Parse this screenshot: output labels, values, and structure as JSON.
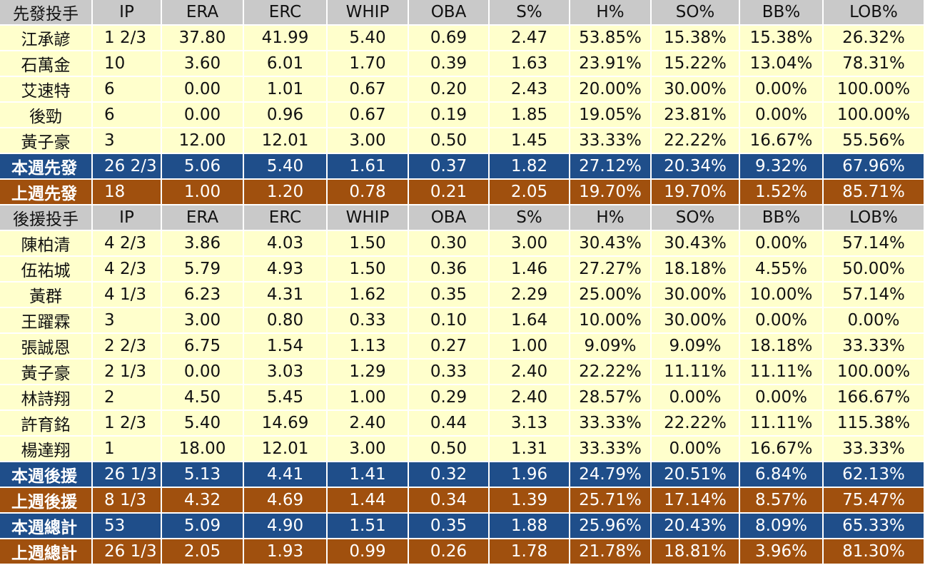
{
  "columns": [
    "IP",
    "ERA",
    "ERC",
    "WHIP",
    "OBA",
    "S%",
    "H%",
    "SO%",
    "BB%",
    "LOB%"
  ],
  "starters": {
    "header_label": "先發投手",
    "rows": [
      {
        "name": "江承諺",
        "cells": [
          "1 2/3",
          "37.80",
          "41.99",
          "5.40",
          "0.69",
          "2.47",
          "53.85%",
          "15.38%",
          "15.38%",
          "26.32%"
        ]
      },
      {
        "name": "石萬金",
        "cells": [
          "10",
          "3.60",
          "6.01",
          "1.70",
          "0.39",
          "1.63",
          "23.91%",
          "15.22%",
          "13.04%",
          "78.31%"
        ]
      },
      {
        "name": "艾速特",
        "cells": [
          "6",
          "0.00",
          "1.01",
          "0.67",
          "0.20",
          "2.43",
          "20.00%",
          "30.00%",
          "0.00%",
          "100.00%"
        ]
      },
      {
        "name": "後勁",
        "cells": [
          "6",
          "0.00",
          "0.96",
          "0.67",
          "0.19",
          "1.85",
          "19.05%",
          "23.81%",
          "0.00%",
          "100.00%"
        ]
      },
      {
        "name": "黃子豪",
        "cells": [
          "3",
          "12.00",
          "12.01",
          "3.00",
          "0.50",
          "1.45",
          "33.33%",
          "22.22%",
          "16.67%",
          "55.56%"
        ]
      }
    ],
    "this_week": {
      "name": "本週先發",
      "cells": [
        "26 2/3",
        "5.06",
        "5.40",
        "1.61",
        "0.37",
        "1.82",
        "27.12%",
        "20.34%",
        "9.32%",
        "67.96%"
      ]
    },
    "last_week": {
      "name": "上週先發",
      "cells": [
        "18",
        "1.00",
        "1.20",
        "0.78",
        "0.21",
        "2.05",
        "19.70%",
        "19.70%",
        "1.52%",
        "85.71%"
      ]
    }
  },
  "relievers": {
    "header_label": "後援投手",
    "rows": [
      {
        "name": "陳柏清",
        "cells": [
          "4 2/3",
          "3.86",
          "4.03",
          "1.50",
          "0.30",
          "3.00",
          "30.43%",
          "30.43%",
          "0.00%",
          "57.14%"
        ]
      },
      {
        "name": "伍祐城",
        "cells": [
          "4 2/3",
          "5.79",
          "4.93",
          "1.50",
          "0.36",
          "1.46",
          "27.27%",
          "18.18%",
          "4.55%",
          "50.00%"
        ]
      },
      {
        "name": "黃群",
        "cells": [
          "4 1/3",
          "6.23",
          "4.31",
          "1.62",
          "0.35",
          "2.29",
          "25.00%",
          "30.00%",
          "10.00%",
          "57.14%"
        ]
      },
      {
        "name": "王躍霖",
        "cells": [
          "3",
          "3.00",
          "0.80",
          "0.33",
          "0.10",
          "1.64",
          "10.00%",
          "30.00%",
          "0.00%",
          "0.00%"
        ]
      },
      {
        "name": "張誠恩",
        "cells": [
          "2 2/3",
          "6.75",
          "1.54",
          "1.13",
          "0.27",
          "1.00",
          "9.09%",
          "9.09%",
          "18.18%",
          "33.33%"
        ]
      },
      {
        "name": "黃子豪",
        "cells": [
          "2 1/3",
          "0.00",
          "3.03",
          "1.29",
          "0.33",
          "2.40",
          "22.22%",
          "11.11%",
          "11.11%",
          "100.00%"
        ]
      },
      {
        "name": "林詩翔",
        "cells": [
          "2",
          "4.50",
          "5.45",
          "1.00",
          "0.29",
          "2.40",
          "28.57%",
          "0.00%",
          "0.00%",
          "166.67%"
        ]
      },
      {
        "name": "許育銘",
        "cells": [
          "1 2/3",
          "5.40",
          "14.69",
          "2.40",
          "0.44",
          "3.13",
          "33.33%",
          "22.22%",
          "11.11%",
          "115.38%"
        ]
      },
      {
        "name": "楊達翔",
        "cells": [
          "1",
          "18.00",
          "12.01",
          "3.00",
          "0.50",
          "1.31",
          "33.33%",
          "0.00%",
          "16.67%",
          "33.33%"
        ]
      }
    ],
    "this_week": {
      "name": "本週後援",
      "cells": [
        "26 1/3",
        "5.13",
        "4.41",
        "1.41",
        "0.32",
        "1.96",
        "24.79%",
        "20.51%",
        "6.84%",
        "62.13%"
      ]
    },
    "last_week": {
      "name": "上週後援",
      "cells": [
        "8 1/3",
        "4.32",
        "4.69",
        "1.44",
        "0.34",
        "1.39",
        "25.71%",
        "17.14%",
        "8.57%",
        "75.47%"
      ]
    }
  },
  "totals": {
    "this_week": {
      "name": "本週總計",
      "cells": [
        "53",
        "5.09",
        "4.90",
        "1.51",
        "0.35",
        "1.88",
        "25.96%",
        "20.43%",
        "8.09%",
        "65.33%"
      ]
    },
    "last_week": {
      "name": "上週總計",
      "cells": [
        "26 1/3",
        "2.05",
        "1.93",
        "0.99",
        "0.26",
        "1.78",
        "21.78%",
        "18.81%",
        "3.96%",
        "81.30%"
      ]
    }
  },
  "colors": {
    "header_bg": "#c9c9c9",
    "row_bg": "#ffffcc",
    "this_week_bg": "#1f4e8a",
    "last_week_bg": "#a0500e"
  }
}
